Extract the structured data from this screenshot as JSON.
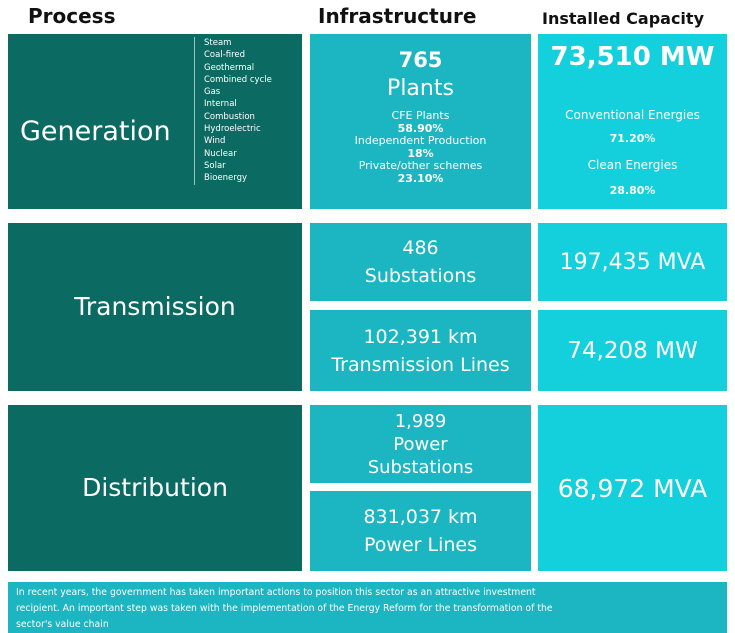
{
  "headers": {
    "process": "Process",
    "infrastructure": "Infrastructure",
    "capacity": "Installed Capacity"
  },
  "generation": {
    "label": "Generation",
    "types": [
      "Steam",
      "Coal-fired",
      "Geothermal",
      "Combined cycle",
      "Gas",
      "Internal",
      "Combustion",
      "Hydroelectric",
      "Wind",
      "Nuclear",
      "Solar",
      "Bioenergy"
    ],
    "plants_count": "765",
    "plants_label": "Plants",
    "cfe_label": "CFE Plants",
    "cfe_pct": "58.90%",
    "independent_label": "Independent Production",
    "independent_pct": "18%",
    "private_label": "Private/other schemes",
    "private_pct": "23.10%",
    "capacity_value": "73,510 MW",
    "conventional_label": "Conventional Energies",
    "conventional_pct": "71.20%",
    "clean_label": "Clean Energies",
    "clean_pct": "28.80%"
  },
  "transmission": {
    "label": "Transmission",
    "substations_count": "486",
    "substations_label": "Substations",
    "substations_capacity": "197,435 MVA",
    "lines_length": "102,391 km",
    "lines_label": "Transmission Lines",
    "lines_capacity": "74,208 MW"
  },
  "distribution": {
    "label": "Distribution",
    "substations_count": "1,989",
    "substations_label_1": "Power",
    "substations_label_2": "Substations",
    "lines_length": "831,037 km",
    "lines_label": "Power Lines",
    "capacity": "68,972 MVA"
  },
  "footer": {
    "line1": "In recent years, the government has taken important actions to position this sector as an attractive investment",
    "line2": "recipient. An important step was taken with the implementation of the Energy Reform for the transformation of the",
    "line3": "sector's value chain"
  },
  "colors": {
    "process_box": "#0b6b63",
    "infrastructure_box": "#1bb6c2",
    "capacity_box": "#14cfdc"
  }
}
